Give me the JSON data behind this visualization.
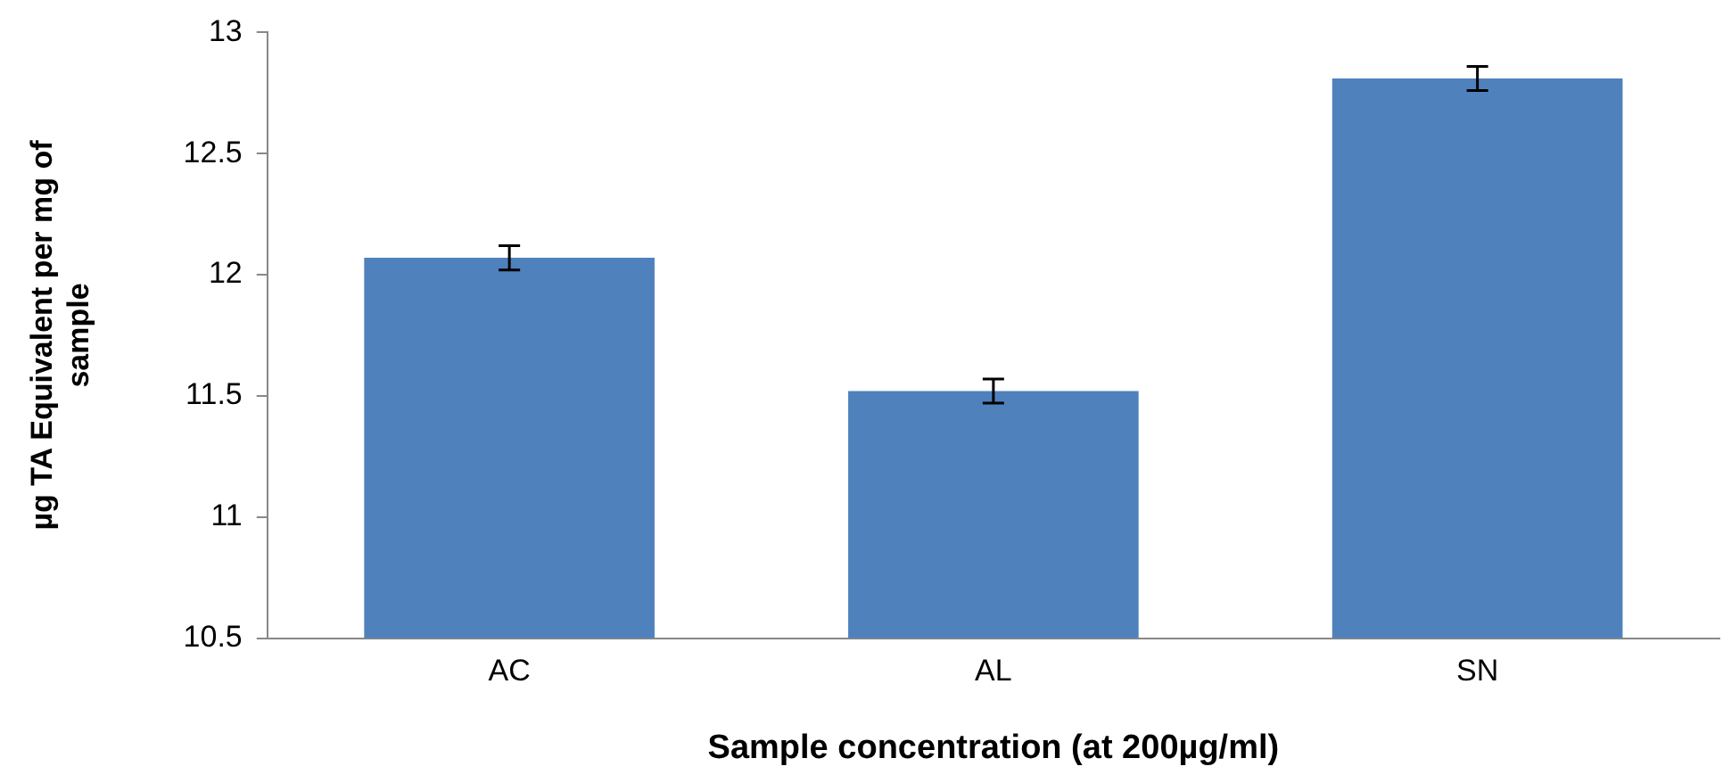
{
  "chart_data": {
    "type": "bar",
    "xlabel": "Sample concentration (at 200µg/ml)",
    "ylabel": "µg TA Equivalent per mg of sample",
    "categories": [
      "AC",
      "AL",
      "SN"
    ],
    "values": [
      12.07,
      11.52,
      12.81
    ],
    "errors": [
      0.05,
      0.05,
      0.05
    ],
    "color": "#4f81bd",
    "ylim": [
      10.5,
      13
    ],
    "yticks": [
      10.5,
      11,
      11.5,
      12,
      12.5,
      13
    ],
    "grid": false,
    "legend": false
  }
}
